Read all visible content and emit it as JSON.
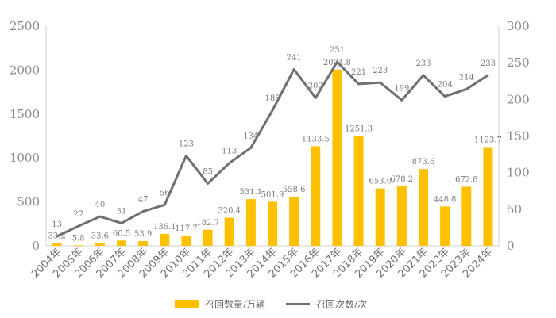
{
  "chart_data": {
    "type": "bar",
    "categories": [
      "2004年",
      "2005年",
      "2006年",
      "2007年",
      "2008年",
      "2009年",
      "2010年",
      "2011年",
      "2012年",
      "2013年",
      "2014年",
      "2015年",
      "2016年",
      "2017年",
      "2018年",
      "2019年",
      "2020年",
      "2021年",
      "2022年",
      "2023年",
      "2024年"
    ],
    "series": [
      {
        "name": "召回数量/万辆",
        "type": "bar",
        "axis": "left",
        "color": "#FFC000",
        "values": [
          33.2,
          5.8,
          33.6,
          60.5,
          53.9,
          136.1,
          117.7,
          182.7,
          320.4,
          531.1,
          501.9,
          558.6,
          1133.5,
          2004.8,
          1251.3,
          653.0,
          678.2,
          873.6,
          448.8,
          672.8,
          1123.7
        ],
        "labels": [
          "33.2",
          "5.8",
          "33.6",
          "60.5",
          "53.9",
          "136.1",
          "117.7",
          "182.7",
          "320.4",
          "531.1",
          "501.9",
          "558.6",
          "1133.5",
          "2004.8",
          "1251.3",
          "653.0",
          "678.2",
          "873.6",
          "448.8",
          "672.8",
          "1123.7"
        ]
      },
      {
        "name": "召回次数/次",
        "type": "line",
        "axis": "right",
        "color": "#707070",
        "values": [
          13,
          27,
          40,
          31,
          47,
          56,
          123,
          85,
          113,
          134,
          185,
          241,
          202,
          251,
          221,
          223,
          199,
          233,
          204,
          214,
          233
        ],
        "labels": [
          "13",
          "27",
          "40",
          "31",
          "47",
          "56",
          "123",
          "85",
          "113",
          "134",
          "185",
          "241",
          "202",
          "251",
          "221",
          "223",
          "199",
          "233",
          "204",
          "214",
          "233"
        ]
      }
    ],
    "y_left": {
      "min": 0,
      "max": 2500,
      "ticks": [
        "0",
        "500",
        "1000",
        "1500",
        "2000",
        "2500"
      ]
    },
    "y_right": {
      "min": 0,
      "max": 300,
      "ticks": [
        "0",
        "50",
        "100",
        "150",
        "200",
        "250",
        "300"
      ]
    },
    "grid": false,
    "legend": {
      "position": "bottom"
    }
  }
}
